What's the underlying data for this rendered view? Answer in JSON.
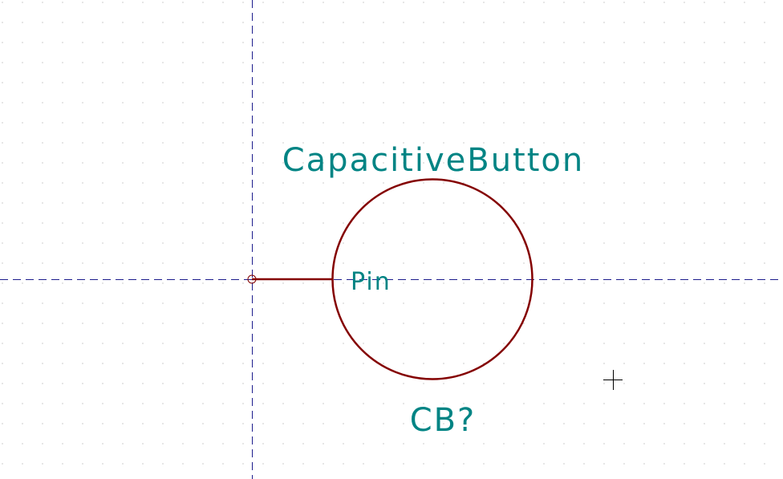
{
  "editor": {
    "grid_visible": true,
    "colors": {
      "background": "#ffffff",
      "grid_dot": "#9a9a9a",
      "axis_line": "#1c1c8c",
      "symbol_body": "#840000",
      "field_text": "#008484",
      "cursor": "#000000"
    }
  },
  "symbol": {
    "value_field": "CapacitiveButton",
    "reference_field": "CB?",
    "shape": "circle",
    "pin": {
      "name": "Pin",
      "anchor_icon": "pin-anchor-circle-icon"
    }
  },
  "cursor": {
    "icon": "crosshair-icon"
  }
}
